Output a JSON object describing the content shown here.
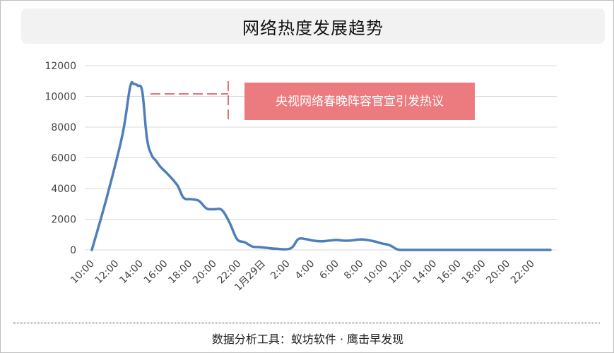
{
  "chart_data": {
    "type": "line",
    "title": "网络热度发展趋势",
    "xlabel": "",
    "ylabel": "",
    "ylim": [
      0,
      12000
    ],
    "yticks": [
      0,
      2000,
      4000,
      6000,
      8000,
      10000,
      12000
    ],
    "xlim": [
      0,
      30
    ],
    "xtick_labels": [
      "10:00",
      "12:00",
      "14:00",
      "16:00",
      "18:00",
      "20:00",
      "22:00",
      "1月29日",
      "2:00",
      "4:00",
      "6:00",
      "8:00",
      "10:00",
      "12:00",
      "14:00",
      "16:00",
      "18:00",
      "20:00",
      "22:00"
    ],
    "grid": "horizontal",
    "legend": "none",
    "line_color": "#4e7fba",
    "series": [
      {
        "x": [
          0,
          1,
          2,
          2.5,
          2.75,
          3,
          3.3,
          3.6,
          3.9,
          4.2,
          4.5,
          5,
          5.6,
          6,
          6.5,
          7,
          7.5,
          8,
          8.5,
          9,
          9.5,
          10,
          10.5,
          11,
          12,
          13,
          13.5,
          14,
          14.5,
          15,
          15.5,
          16,
          16.5,
          17,
          17.5,
          18,
          18.5,
          19,
          19.5,
          20,
          20.5,
          21,
          21.5,
          22,
          22.5,
          23,
          24,
          25,
          26,
          27,
          28,
          29,
          30
        ],
        "values": [
          0,
          3500,
          7500,
          10600,
          10800,
          10700,
          10300,
          7300,
          6200,
          5800,
          5400,
          4900,
          4200,
          3400,
          3300,
          3200,
          2700,
          2650,
          2600,
          1800,
          700,
          500,
          220,
          180,
          80,
          100,
          700,
          700,
          600,
          560,
          600,
          650,
          600,
          620,
          680,
          650,
          550,
          420,
          300,
          30,
          0,
          0,
          0,
          0,
          0,
          0,
          0,
          0,
          0,
          0,
          0,
          0,
          0
        ]
      }
    ],
    "annotation": {
      "text": "央视网络春晚阵容官宣引发热议",
      "box_color": "#ec7b7f",
      "leader_color": "#d9444a"
    }
  },
  "footer": {
    "source": "数据分析工具：蚁坊软件 · 鹰击早发现"
  }
}
